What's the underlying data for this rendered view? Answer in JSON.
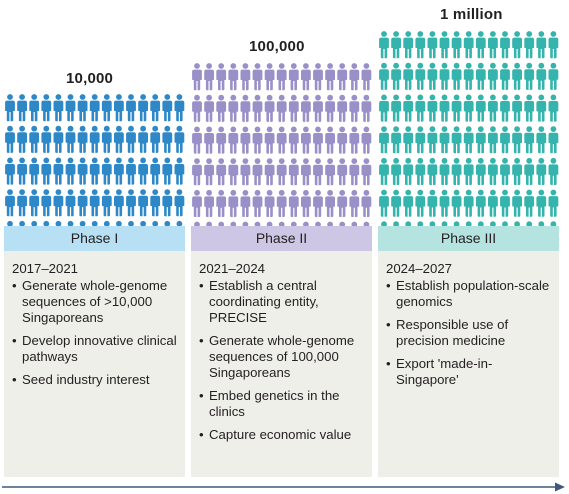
{
  "colors": {
    "phase1_people": "#2e88c7",
    "phase2_people": "#9a90c8",
    "phase3_people": "#35b3ad",
    "phase1_header": "#b7e0f5",
    "phase2_header": "#cdc6e4",
    "phase3_header": "#b5e3df",
    "panel_bg": "#efefe9",
    "timeline": "#3d5a7a"
  },
  "icons": {
    "person": "person-icon",
    "arrow": "arrow-right-icon"
  },
  "phases": [
    {
      "count_label": "10,000",
      "people_rows": 5,
      "title": "Phase I",
      "years": "2017–2021",
      "items": [
        "Generate whole-genome sequences of >10,000 Singaporeans",
        "Develop innovative clinical pathways",
        "Seed industry interest"
      ]
    },
    {
      "count_label": "100,000",
      "people_rows": 6,
      "title": "Phase II",
      "years": "2021–2024",
      "items": [
        "Establish a central coordinating entity, PRECISE",
        "Generate whole-genome  sequences of 100,000 Singaporeans",
        "Embed genetics in the clinics",
        "Capture economic value"
      ]
    },
    {
      "count_label": "1 million",
      "people_rows": 7,
      "title": "Phase III",
      "years": "2024–2027",
      "items": [
        "Establish population-scale genomics",
        "Responsible use of precision medicine",
        "Export 'made-in-Singapore'"
      ]
    }
  ]
}
